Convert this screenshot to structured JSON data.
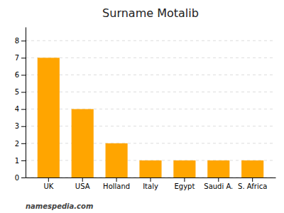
{
  "chart_data": {
    "type": "bar",
    "title": "Surname Motalib",
    "categories": [
      "UK",
      "USA",
      "Holland",
      "Italy",
      "Egypt",
      "Saudi A.",
      "S. Africa"
    ],
    "values": [
      7,
      4,
      2,
      1,
      1,
      1,
      1
    ],
    "color": "#FFA500",
    "ylim": [
      0,
      8.8
    ],
    "yticks": [
      0,
      1,
      2,
      3,
      4,
      5,
      6,
      7,
      8
    ],
    "grid": true,
    "annotations": [
      "namespedia.com"
    ]
  }
}
